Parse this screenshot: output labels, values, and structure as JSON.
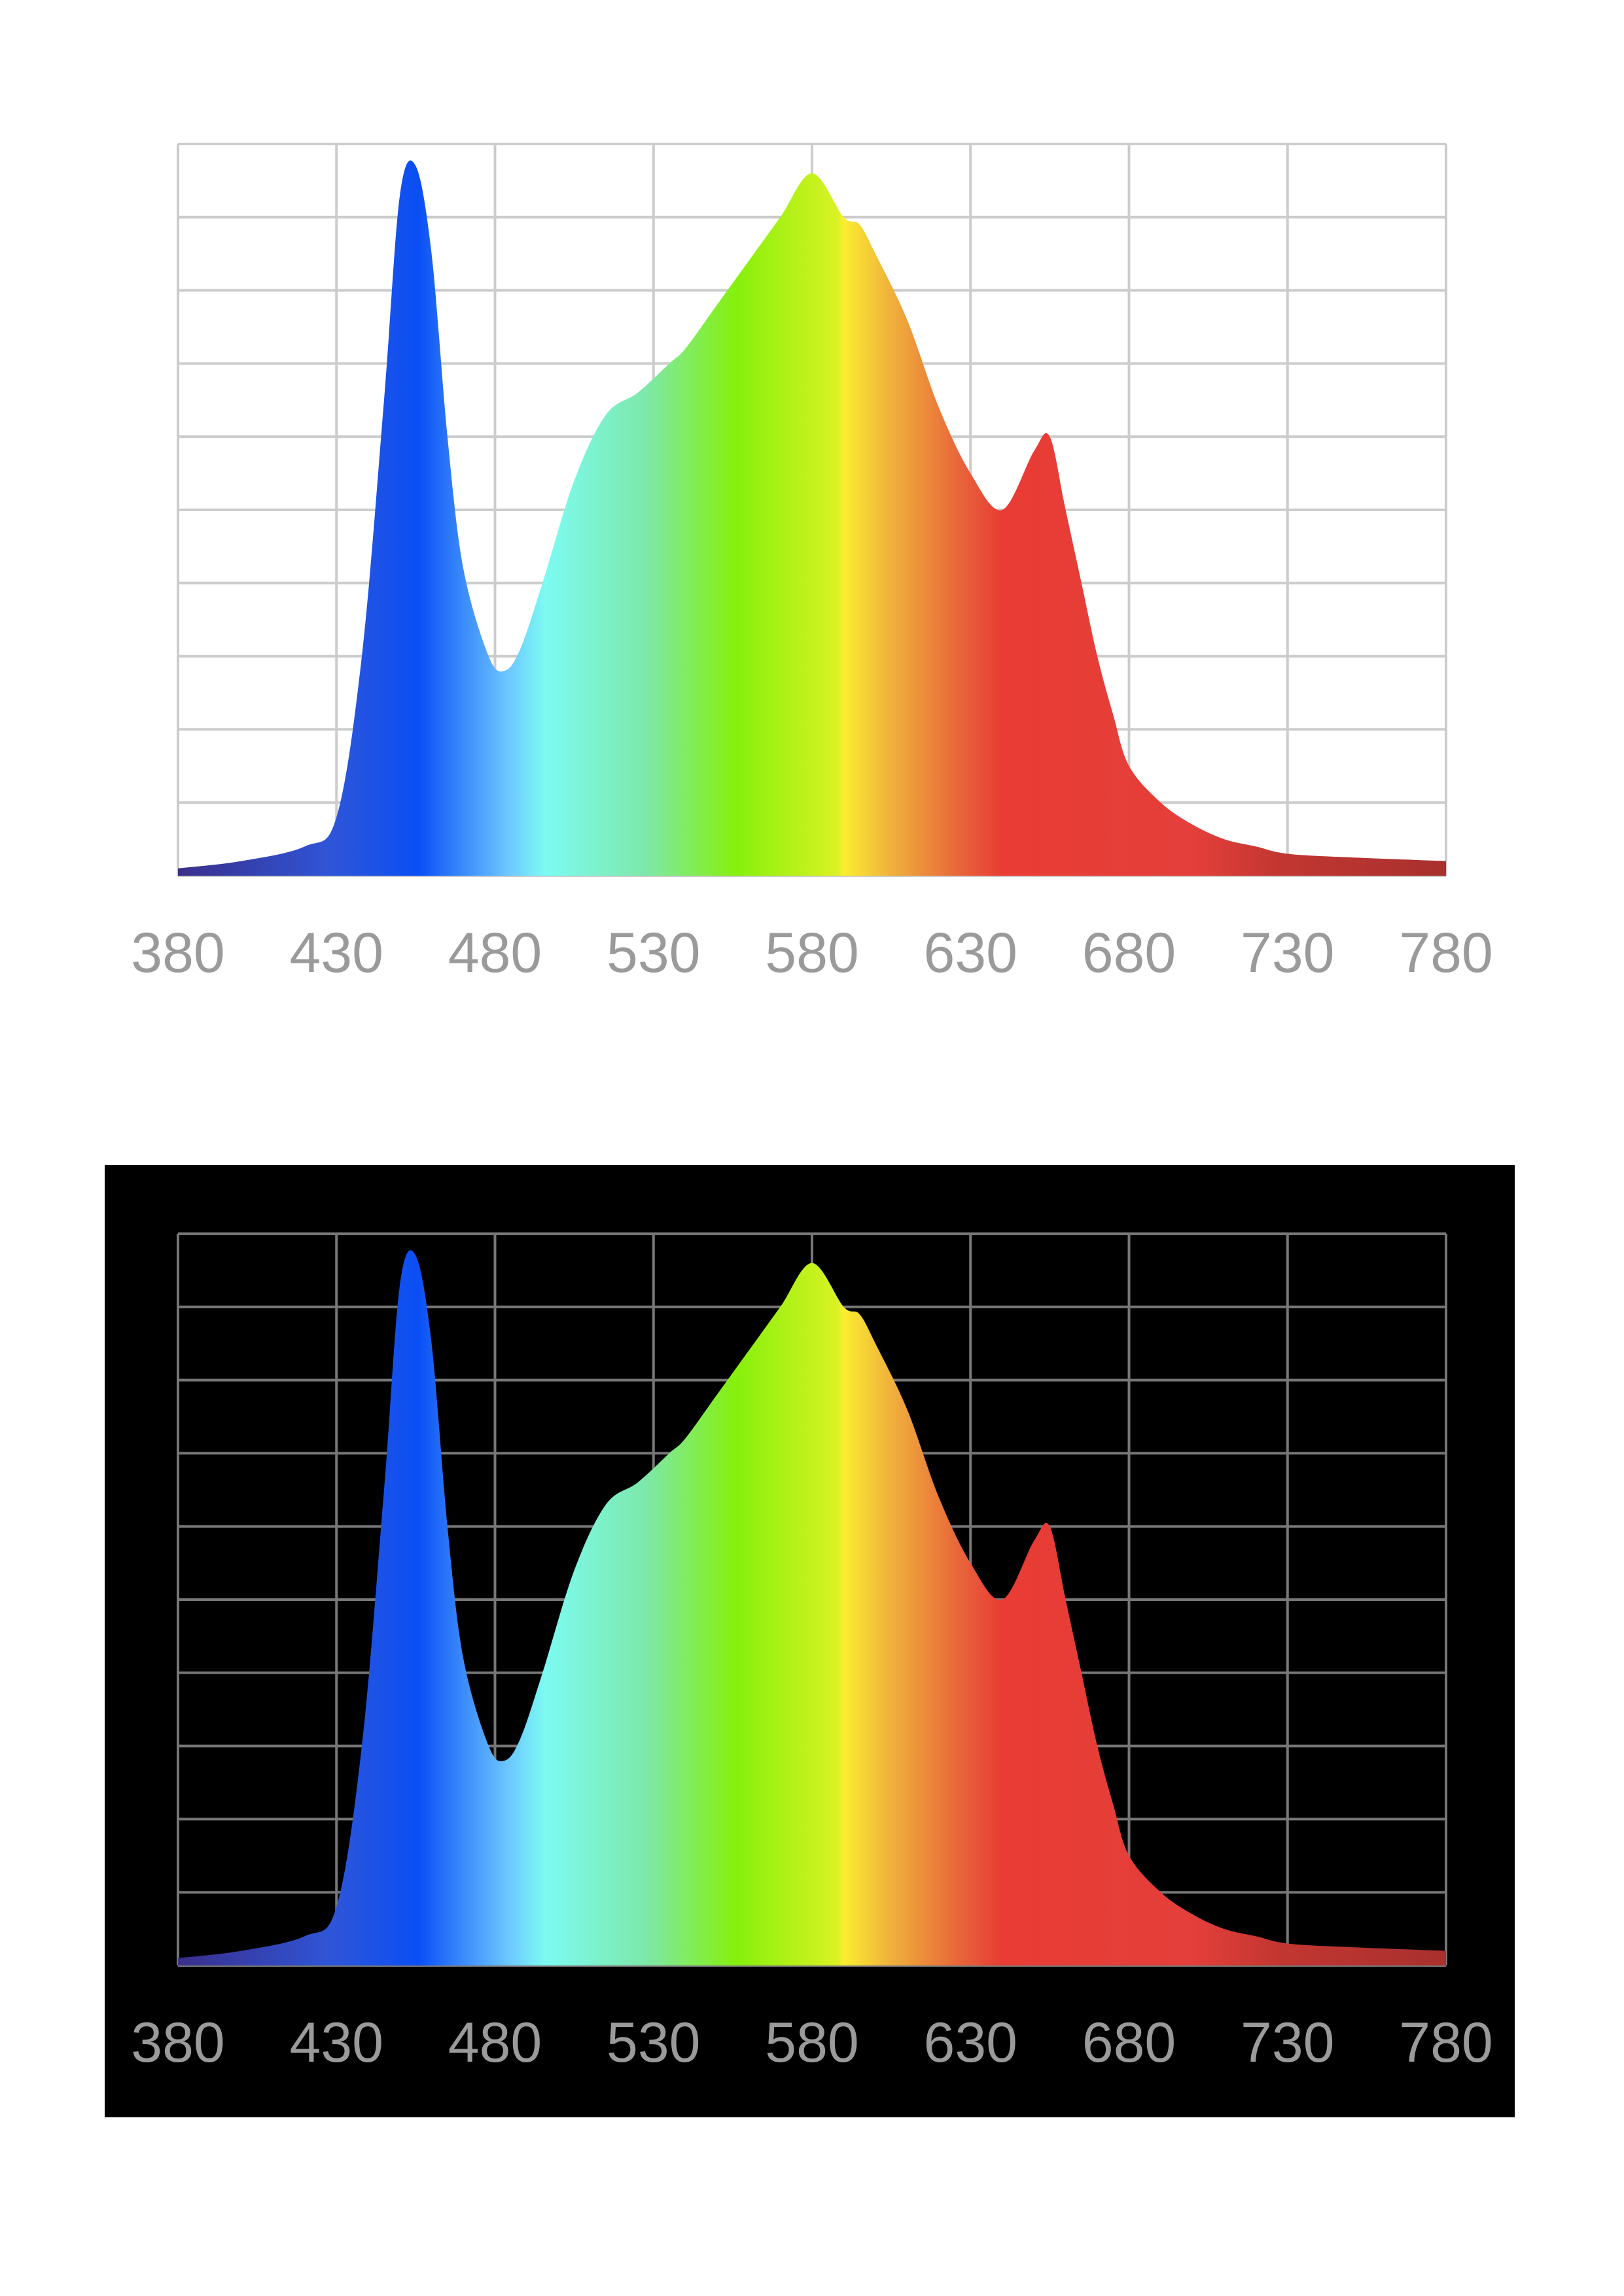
{
  "chart_data": [
    {
      "type": "area",
      "theme": "light",
      "x_ticks": [
        "380",
        "430",
        "480",
        "530",
        "580",
        "630",
        "680",
        "730",
        "780"
      ],
      "xlim": [
        380,
        780
      ],
      "ylim": [
        0,
        1
      ],
      "grid": true,
      "series": [
        {
          "x": [
            380,
            400,
            420,
            430,
            438,
            445,
            450,
            455,
            460,
            465,
            470,
            478,
            483,
            488,
            495,
            505,
            515,
            525,
            535,
            540,
            550,
            560,
            570,
            580,
            590,
            595,
            600,
            610,
            620,
            630,
            640,
            650,
            655,
            660,
            665,
            670,
            675,
            680,
            690,
            700,
            710,
            720,
            730,
            750,
            780
          ],
          "values": [
            0.01,
            0.02,
            0.04,
            0.08,
            0.3,
            0.65,
            0.93,
            0.97,
            0.85,
            0.6,
            0.42,
            0.3,
            0.28,
            0.31,
            0.4,
            0.54,
            0.63,
            0.66,
            0.7,
            0.72,
            0.78,
            0.84,
            0.9,
            0.96,
            0.9,
            0.89,
            0.85,
            0.76,
            0.64,
            0.55,
            0.5,
            0.58,
            0.6,
            0.5,
            0.4,
            0.3,
            0.22,
            0.15,
            0.1,
            0.07,
            0.05,
            0.04,
            0.03,
            0.025,
            0.02
          ]
        }
      ]
    },
    {
      "type": "area",
      "theme": "dark",
      "x_ticks": [
        "380",
        "430",
        "480",
        "530",
        "580",
        "630",
        "680",
        "730",
        "780"
      ],
      "xlim": [
        380,
        780
      ],
      "ylim": [
        0,
        1
      ],
      "grid": true,
      "series": [
        {
          "x": [
            380,
            400,
            420,
            430,
            438,
            445,
            450,
            455,
            460,
            465,
            470,
            478,
            483,
            488,
            495,
            505,
            515,
            525,
            535,
            540,
            550,
            560,
            570,
            580,
            590,
            595,
            600,
            610,
            620,
            630,
            640,
            650,
            655,
            660,
            665,
            670,
            675,
            680,
            690,
            700,
            710,
            720,
            730,
            750,
            780
          ],
          "values": [
            0.01,
            0.02,
            0.04,
            0.08,
            0.3,
            0.65,
            0.93,
            0.97,
            0.85,
            0.6,
            0.42,
            0.3,
            0.28,
            0.31,
            0.4,
            0.54,
            0.63,
            0.66,
            0.7,
            0.72,
            0.78,
            0.84,
            0.9,
            0.96,
            0.9,
            0.89,
            0.85,
            0.76,
            0.64,
            0.55,
            0.5,
            0.58,
            0.6,
            0.5,
            0.4,
            0.3,
            0.22,
            0.15,
            0.1,
            0.07,
            0.05,
            0.04,
            0.03,
            0.025,
            0.02
          ]
        }
      ]
    }
  ],
  "colors": {
    "grid_light": "#cccccc",
    "grid_dark": "#777777",
    "tick_label": "#9a9a9a",
    "panel_dark_background": "#000000"
  }
}
